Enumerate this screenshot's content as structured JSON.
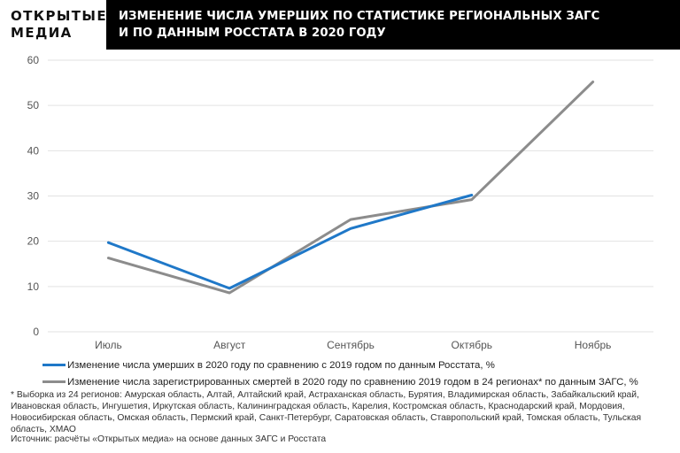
{
  "logo": {
    "line1": "ОТКРЫТЫЕ",
    "line2": "МЕДИА"
  },
  "header": {
    "title_line1": "ИЗМЕНЕНИЕ ЧИСЛА УМЕРШИХ ПО СТАТИСТИКЕ РЕГИОНАЛЬНЫХ ЗАГС",
    "title_line2": "И ПО ДАННЫМ РОССТАТА В 2020 ГОДУ"
  },
  "chart_data": {
    "type": "line",
    "categories": [
      "Июль",
      "Август",
      "Сентябрь",
      "Октябрь",
      "Ноябрь"
    ],
    "ylim": [
      0,
      60
    ],
    "yticks": [
      0,
      10,
      20,
      30,
      40,
      50,
      60
    ],
    "grid": true,
    "legend_position": "bottom-left",
    "series": [
      {
        "name": "Изменение числа умерших в 2020 году по сравнению с 2019 годом по данным Росстата, %",
        "color": "#1f78c8",
        "values": [
          19.7,
          9.6,
          22.8,
          30.2,
          null
        ]
      },
      {
        "name": "Изменение числа зарегистрированных смертей в 2020 году по сравнению 2019 годом в 24 регионах* по данным ЗАГС, %",
        "color": "#8c8c8c",
        "values": [
          16.3,
          8.6,
          24.8,
          29.2,
          55.2
        ]
      }
    ]
  },
  "footnote": "* Выборка из 24 регионов: Амурская область, Алтай, Алтайский край, Астраханская область, Бурятия, Владимирская область, Забайкальский край, Ивановская область, Ингушетия, Иркутская область, Калининградская область, Карелия, Костромская область, Краснодарский край, Мордовия, Новосибирская область, Омская область, Пермский край, Санкт-Петербург, Саратовская область, Ставропольский край, Томская область, Тульская область, ХМАО",
  "source": "Источник: расчёты «Открытых медиа» на основе данных ЗАГС и Росстата"
}
